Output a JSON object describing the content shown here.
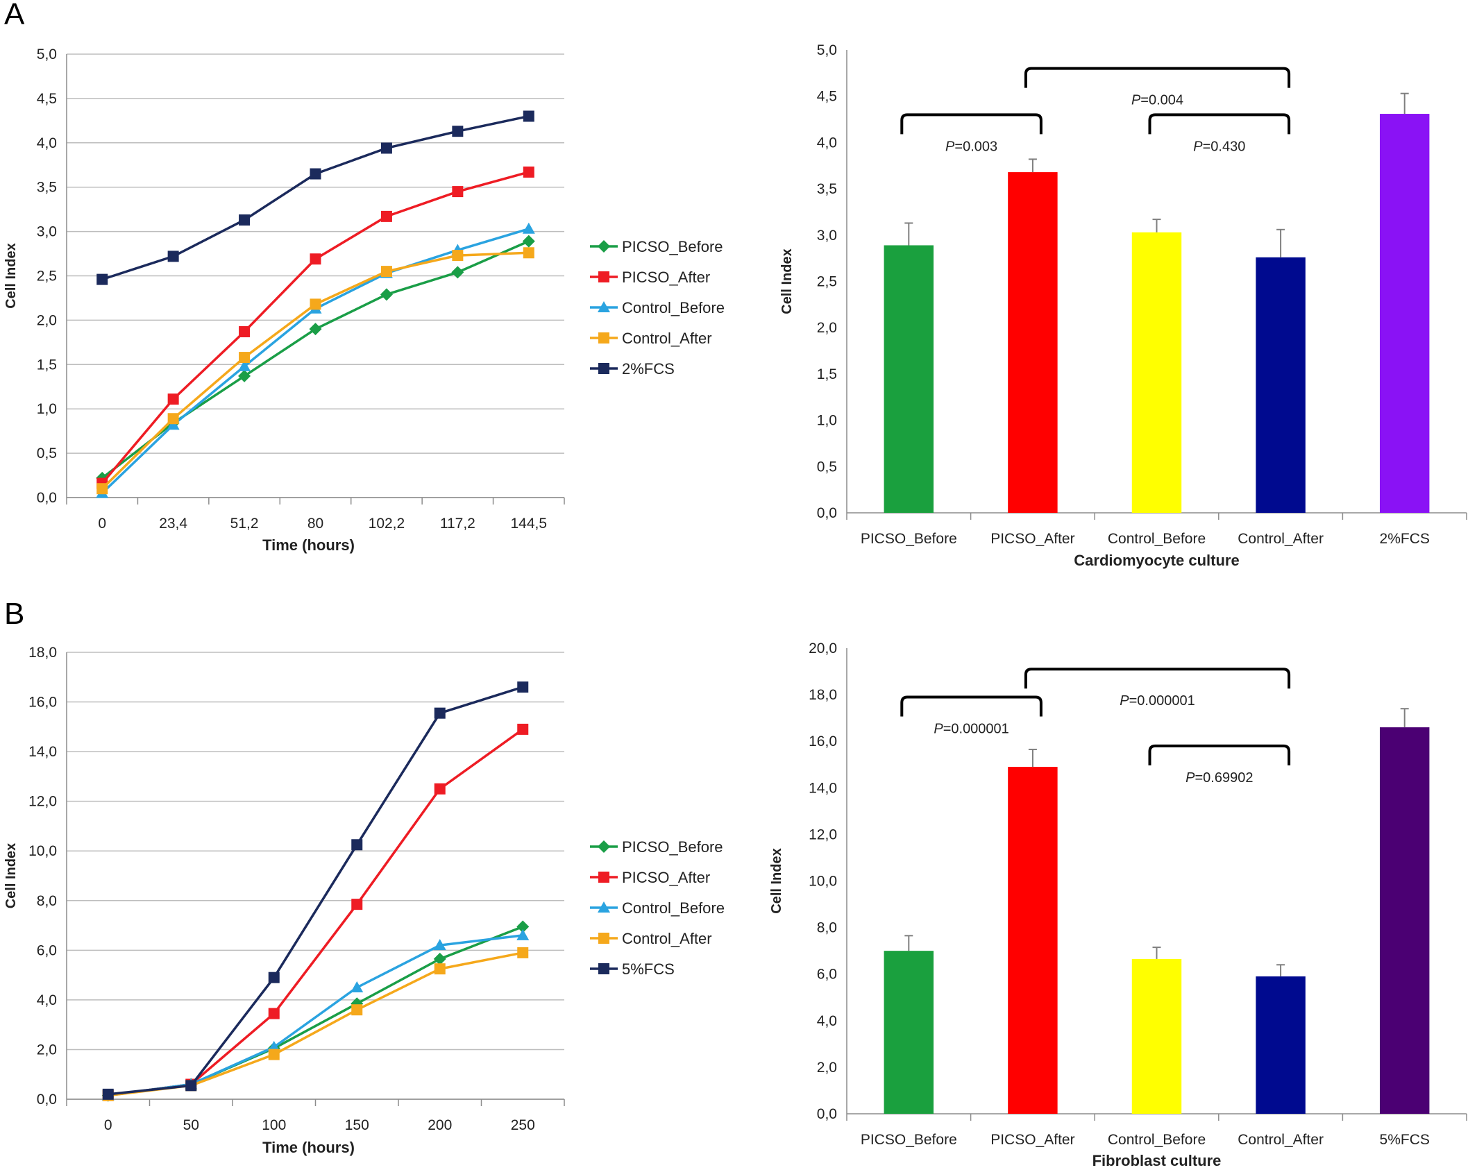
{
  "panels": [
    {
      "label": "A"
    },
    {
      "label": "B"
    }
  ],
  "chart_data": [
    {
      "id": "A-line",
      "type": "line",
      "xlabel": "Time (hours)",
      "ylabel": "Cell Index",
      "categories": [
        "0",
        "23,4",
        "51,2",
        "80",
        "102,2",
        "117,2",
        "144,5"
      ],
      "ylim": [
        0,
        5
      ],
      "yticks": [
        "0,0",
        "0,5",
        "1,0",
        "1,5",
        "2,0",
        "2,5",
        "3,0",
        "3,5",
        "4,0",
        "4,5",
        "5,0"
      ],
      "grid": true,
      "legend": "right",
      "series": [
        {
          "name": "PICSO_Before",
          "color": "#1a9e47",
          "marker": "diamond",
          "values": [
            0.22,
            0.84,
            1.37,
            1.9,
            2.29,
            2.54,
            2.89
          ]
        },
        {
          "name": "PICSO_After",
          "color": "#ee1c24",
          "marker": "square",
          "values": [
            0.16,
            1.11,
            1.87,
            2.69,
            3.17,
            3.45,
            3.67
          ]
        },
        {
          "name": "Control_Before",
          "color": "#2aa3e0",
          "marker": "triangle",
          "values": [
            0.05,
            0.82,
            1.48,
            2.13,
            2.53,
            2.79,
            3.03
          ]
        },
        {
          "name": "Control_After",
          "color": "#f5a81b",
          "marker": "square",
          "values": [
            0.1,
            0.89,
            1.58,
            2.18,
            2.55,
            2.73,
            2.76
          ]
        },
        {
          "name": "2%FCS",
          "color": "#1b2a5c",
          "marker": "square",
          "values": [
            2.46,
            2.72,
            3.13,
            3.65,
            3.94,
            4.13,
            4.3
          ]
        }
      ]
    },
    {
      "id": "A-bar",
      "type": "bar",
      "xlabel": "Cardiomyocyte culture",
      "ylabel": "Cell Index",
      "categories": [
        "PICSO_Before",
        "PICSO_After",
        "Control_Before",
        "Control_After",
        "2%FCS"
      ],
      "values": [
        2.89,
        3.68,
        3.03,
        2.76,
        4.31
      ],
      "errors": [
        0.24,
        0.14,
        0.14,
        0.3,
        0.22
      ],
      "colors": [
        "#1aa03e",
        "#ff0000",
        "#ffff00",
        "#000a8f",
        "#8a12f5"
      ],
      "ylim": [
        0,
        5
      ],
      "yticks": [
        "0,0",
        "0,5",
        "1,0",
        "1,5",
        "2,0",
        "2,5",
        "3,0",
        "3,5",
        "4,0",
        "4,5",
        "5,0"
      ],
      "brackets": [
        {
          "from": 0,
          "to": 1,
          "level": 4.3,
          "p_symbol": "P",
          "p_value": "=0.003"
        },
        {
          "from": 1,
          "to": 3,
          "level": 4.8,
          "p_symbol": "P",
          "p_value": "=0.004"
        },
        {
          "from": 2,
          "to": 3,
          "level": 4.3,
          "p_symbol": "P",
          "p_value": "=0.430"
        }
      ]
    },
    {
      "id": "B-line",
      "type": "line",
      "xlabel": "Time (hours)",
      "ylabel": "Cell Index",
      "categories": [
        "0",
        "50",
        "100",
        "150",
        "200",
        "250"
      ],
      "ylim": [
        0,
        18
      ],
      "yticks": [
        "0,0",
        "2,0",
        "4,0",
        "6,0",
        "8,0",
        "10,0",
        "12,0",
        "14,0",
        "16,0",
        "18,0"
      ],
      "grid": true,
      "legend": "right",
      "series": [
        {
          "name": "PICSO_Before",
          "color": "#1a9e47",
          "marker": "diamond",
          "values": [
            0.15,
            0.6,
            2.05,
            3.85,
            5.65,
            6.95
          ]
        },
        {
          "name": "PICSO_After",
          "color": "#ee1c24",
          "marker": "square",
          "values": [
            0.15,
            0.6,
            3.45,
            7.85,
            12.5,
            14.9
          ]
        },
        {
          "name": "Control_Before",
          "color": "#2aa3e0",
          "marker": "triangle",
          "values": [
            0.15,
            0.6,
            2.1,
            4.5,
            6.2,
            6.6
          ]
        },
        {
          "name": "Control_After",
          "color": "#f5a81b",
          "marker": "square",
          "values": [
            0.15,
            0.55,
            1.8,
            3.6,
            5.25,
            5.9
          ]
        },
        {
          "name": "5%FCS",
          "color": "#1b2a5c",
          "marker": "square",
          "values": [
            0.2,
            0.55,
            4.9,
            10.25,
            15.55,
            16.6
          ]
        }
      ]
    },
    {
      "id": "B-bar",
      "type": "bar",
      "xlabel": "Fibroblast culture",
      "ylabel": "Cell Index",
      "categories": [
        "PICSO_Before",
        "PICSO_After",
        "Control_Before",
        "Control_After",
        "5%FCS"
      ],
      "values": [
        7.0,
        14.9,
        6.65,
        5.9,
        16.6
      ],
      "errors": [
        0.65,
        0.75,
        0.5,
        0.5,
        0.8
      ],
      "colors": [
        "#1aa03e",
        "#ff0000",
        "#ffff00",
        "#000a8f",
        "#4b0073"
      ],
      "ylim": [
        0,
        20
      ],
      "yticks": [
        "0,0",
        "2,0",
        "4,0",
        "6,0",
        "8,0",
        "10,0",
        "12,0",
        "14,0",
        "16,0",
        "18,0",
        "20,0"
      ],
      "brackets": [
        {
          "from": 0,
          "to": 1,
          "level": 17.9,
          "p_symbol": "P",
          "p_value": "=0.000001"
        },
        {
          "from": 1,
          "to": 3,
          "level": 19.1,
          "p_symbol": "P",
          "p_value": "=0.000001"
        },
        {
          "from": 2,
          "to": 3,
          "level": 15.8,
          "p_symbol": "P",
          "p_value": "=0.69902"
        }
      ]
    }
  ]
}
